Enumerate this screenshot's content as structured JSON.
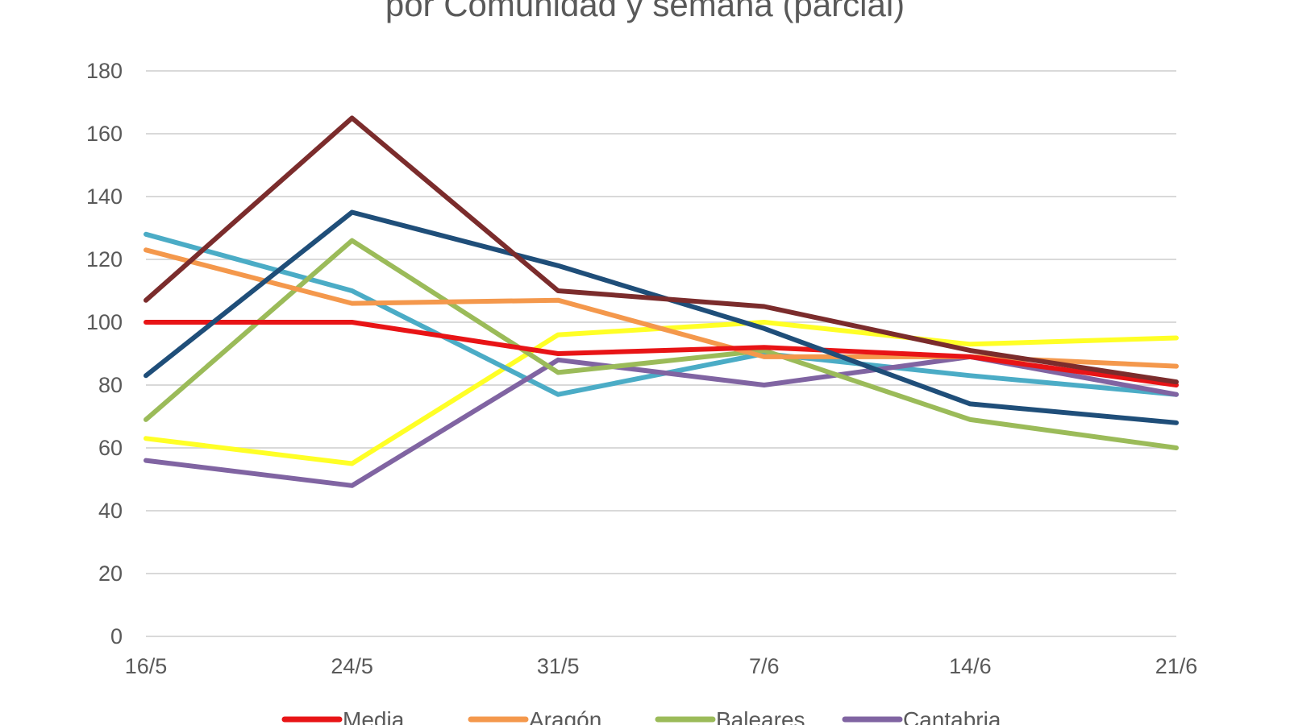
{
  "chart_data": {
    "type": "line",
    "title": "por Comunidad y semana (parcial)",
    "xlabel": "",
    "ylabel": "",
    "categories": [
      "16/5",
      "24/5",
      "31/5",
      "7/6",
      "14/6",
      "21/6"
    ],
    "ylim": [
      0,
      180
    ],
    "yticks": [
      0,
      20,
      40,
      60,
      80,
      100,
      120,
      140,
      160,
      180
    ],
    "grid": true,
    "legend_position": "bottom",
    "series": [
      {
        "name": "Media",
        "color": "#e81416",
        "values": [
          100,
          100,
          90,
          92,
          89,
          80
        ],
        "in_legend": true
      },
      {
        "name": "Aragón",
        "color": "#f4984c",
        "values": [
          123,
          106,
          107,
          89,
          89,
          86
        ],
        "in_legend": true
      },
      {
        "name": "Baleares",
        "color": "#9bbb59",
        "values": [
          69,
          126,
          84,
          91,
          69,
          60
        ],
        "in_legend": true
      },
      {
        "name": "Cantabria",
        "color": "#8064a2",
        "values": [
          56,
          48,
          88,
          80,
          89,
          77
        ],
        "in_legend": true
      },
      {
        "name": "",
        "color": "#ffff26",
        "values": [
          63,
          55,
          96,
          100,
          93,
          95
        ],
        "in_legend": false
      },
      {
        "name": "",
        "color": "#4bacc6",
        "values": [
          128,
          110,
          77,
          90,
          83,
          77
        ],
        "in_legend": false
      },
      {
        "name": "",
        "color": "#1f4e79",
        "values": [
          83,
          135,
          118,
          98,
          74,
          68
        ],
        "in_legend": false
      },
      {
        "name": "",
        "color": "#7b2c2c",
        "values": [
          107,
          165,
          110,
          105,
          91,
          81
        ],
        "in_legend": false
      }
    ]
  }
}
